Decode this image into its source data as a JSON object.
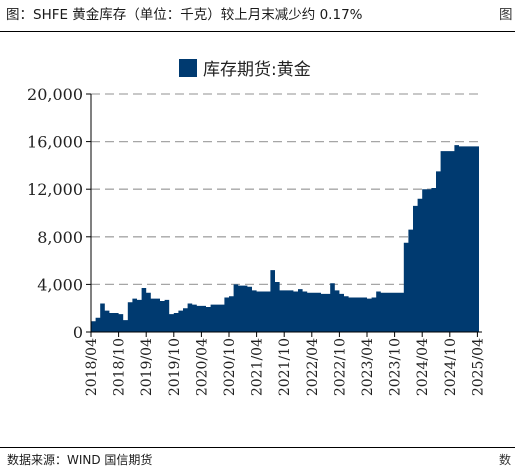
{
  "header": {
    "title": "图：SHFE 黄金库存（单位：千克）较上月末减少约 0.17%",
    "corner_mark": "图"
  },
  "footer": {
    "source": "数据来源：WIND 国信期货",
    "corner_mark": "数"
  },
  "colors": {
    "series": "#003a70",
    "grid": "#a6a6a6",
    "axis": "#000000"
  },
  "chart_data": {
    "type": "area",
    "legend": {
      "label": "库存期货:黄金",
      "position": "top"
    },
    "grid": true,
    "ylim": [
      0,
      20000
    ],
    "yticks": [
      0,
      4000,
      8000,
      12000,
      16000,
      20000
    ],
    "ytick_labels": [
      "0",
      "4,000",
      "8,000",
      "12,000",
      "16,000",
      "20,000"
    ],
    "xlim": [
      "2018-04",
      "2025-05"
    ],
    "xticks": [
      "2018/04",
      "2018/10",
      "2019/04",
      "2019/10",
      "2020/04",
      "2020/10",
      "2021/04",
      "2021/10",
      "2022/04",
      "2022/10",
      "2023/04",
      "2023/10",
      "2024/04",
      "2024/10",
      "2025/04"
    ],
    "series": [
      {
        "name": "库存期货:黄金",
        "points": [
          [
            "2018-04",
            900
          ],
          [
            "2018-05",
            1200
          ],
          [
            "2018-06",
            2400
          ],
          [
            "2018-07",
            1800
          ],
          [
            "2018-08",
            1600
          ],
          [
            "2018-09",
            1600
          ],
          [
            "2018-10",
            1500
          ],
          [
            "2018-11",
            1000
          ],
          [
            "2018-12",
            2500
          ],
          [
            "2019-01",
            2800
          ],
          [
            "2019-02",
            2700
          ],
          [
            "2019-03",
            3700
          ],
          [
            "2019-04",
            3300
          ],
          [
            "2019-05",
            2800
          ],
          [
            "2019-06",
            2800
          ],
          [
            "2019-07",
            2600
          ],
          [
            "2019-08",
            2700
          ],
          [
            "2019-09",
            1500
          ],
          [
            "2019-10",
            1600
          ],
          [
            "2019-11",
            1800
          ],
          [
            "2019-12",
            2000
          ],
          [
            "2020-01",
            2400
          ],
          [
            "2020-02",
            2300
          ],
          [
            "2020-03",
            2200
          ],
          [
            "2020-04",
            2200
          ],
          [
            "2020-05",
            2100
          ],
          [
            "2020-06",
            2300
          ],
          [
            "2020-07",
            2300
          ],
          [
            "2020-08",
            2300
          ],
          [
            "2020-09",
            2900
          ],
          [
            "2020-10",
            3000
          ],
          [
            "2020-11",
            4000
          ],
          [
            "2020-12",
            3900
          ],
          [
            "2021-01",
            3900
          ],
          [
            "2021-02",
            3800
          ],
          [
            "2021-03",
            3500
          ],
          [
            "2021-04",
            3400
          ],
          [
            "2021-05",
            3400
          ],
          [
            "2021-06",
            3400
          ],
          [
            "2021-07",
            5200
          ],
          [
            "2021-08",
            4200
          ],
          [
            "2021-09",
            3500
          ],
          [
            "2021-10",
            3500
          ],
          [
            "2021-11",
            3500
          ],
          [
            "2021-12",
            3400
          ],
          [
            "2022-01",
            3600
          ],
          [
            "2022-02",
            3400
          ],
          [
            "2022-03",
            3300
          ],
          [
            "2022-04",
            3300
          ],
          [
            "2022-05",
            3300
          ],
          [
            "2022-06",
            3200
          ],
          [
            "2022-07",
            3200
          ],
          [
            "2022-08",
            4100
          ],
          [
            "2022-09",
            3500
          ],
          [
            "2022-10",
            3200
          ],
          [
            "2022-11",
            3000
          ],
          [
            "2022-12",
            2900
          ],
          [
            "2023-01",
            2900
          ],
          [
            "2023-02",
            2900
          ],
          [
            "2023-03",
            2900
          ],
          [
            "2023-04",
            2800
          ],
          [
            "2023-05",
            2900
          ],
          [
            "2023-06",
            3400
          ],
          [
            "2023-07",
            3300
          ],
          [
            "2023-08",
            3300
          ],
          [
            "2023-09",
            3300
          ],
          [
            "2023-10",
            3300
          ],
          [
            "2023-11",
            3300
          ],
          [
            "2023-12",
            7500
          ],
          [
            "2024-01",
            8600
          ],
          [
            "2024-02",
            10600
          ],
          [
            "2024-03",
            11200
          ],
          [
            "2024-04",
            12000
          ],
          [
            "2024-05",
            12000
          ],
          [
            "2024-06",
            12100
          ],
          [
            "2024-07",
            13500
          ],
          [
            "2024-08",
            15200
          ],
          [
            "2024-09",
            15200
          ],
          [
            "2024-10",
            15200
          ],
          [
            "2024-11",
            15700
          ],
          [
            "2024-12",
            15600
          ]
        ]
      }
    ]
  }
}
